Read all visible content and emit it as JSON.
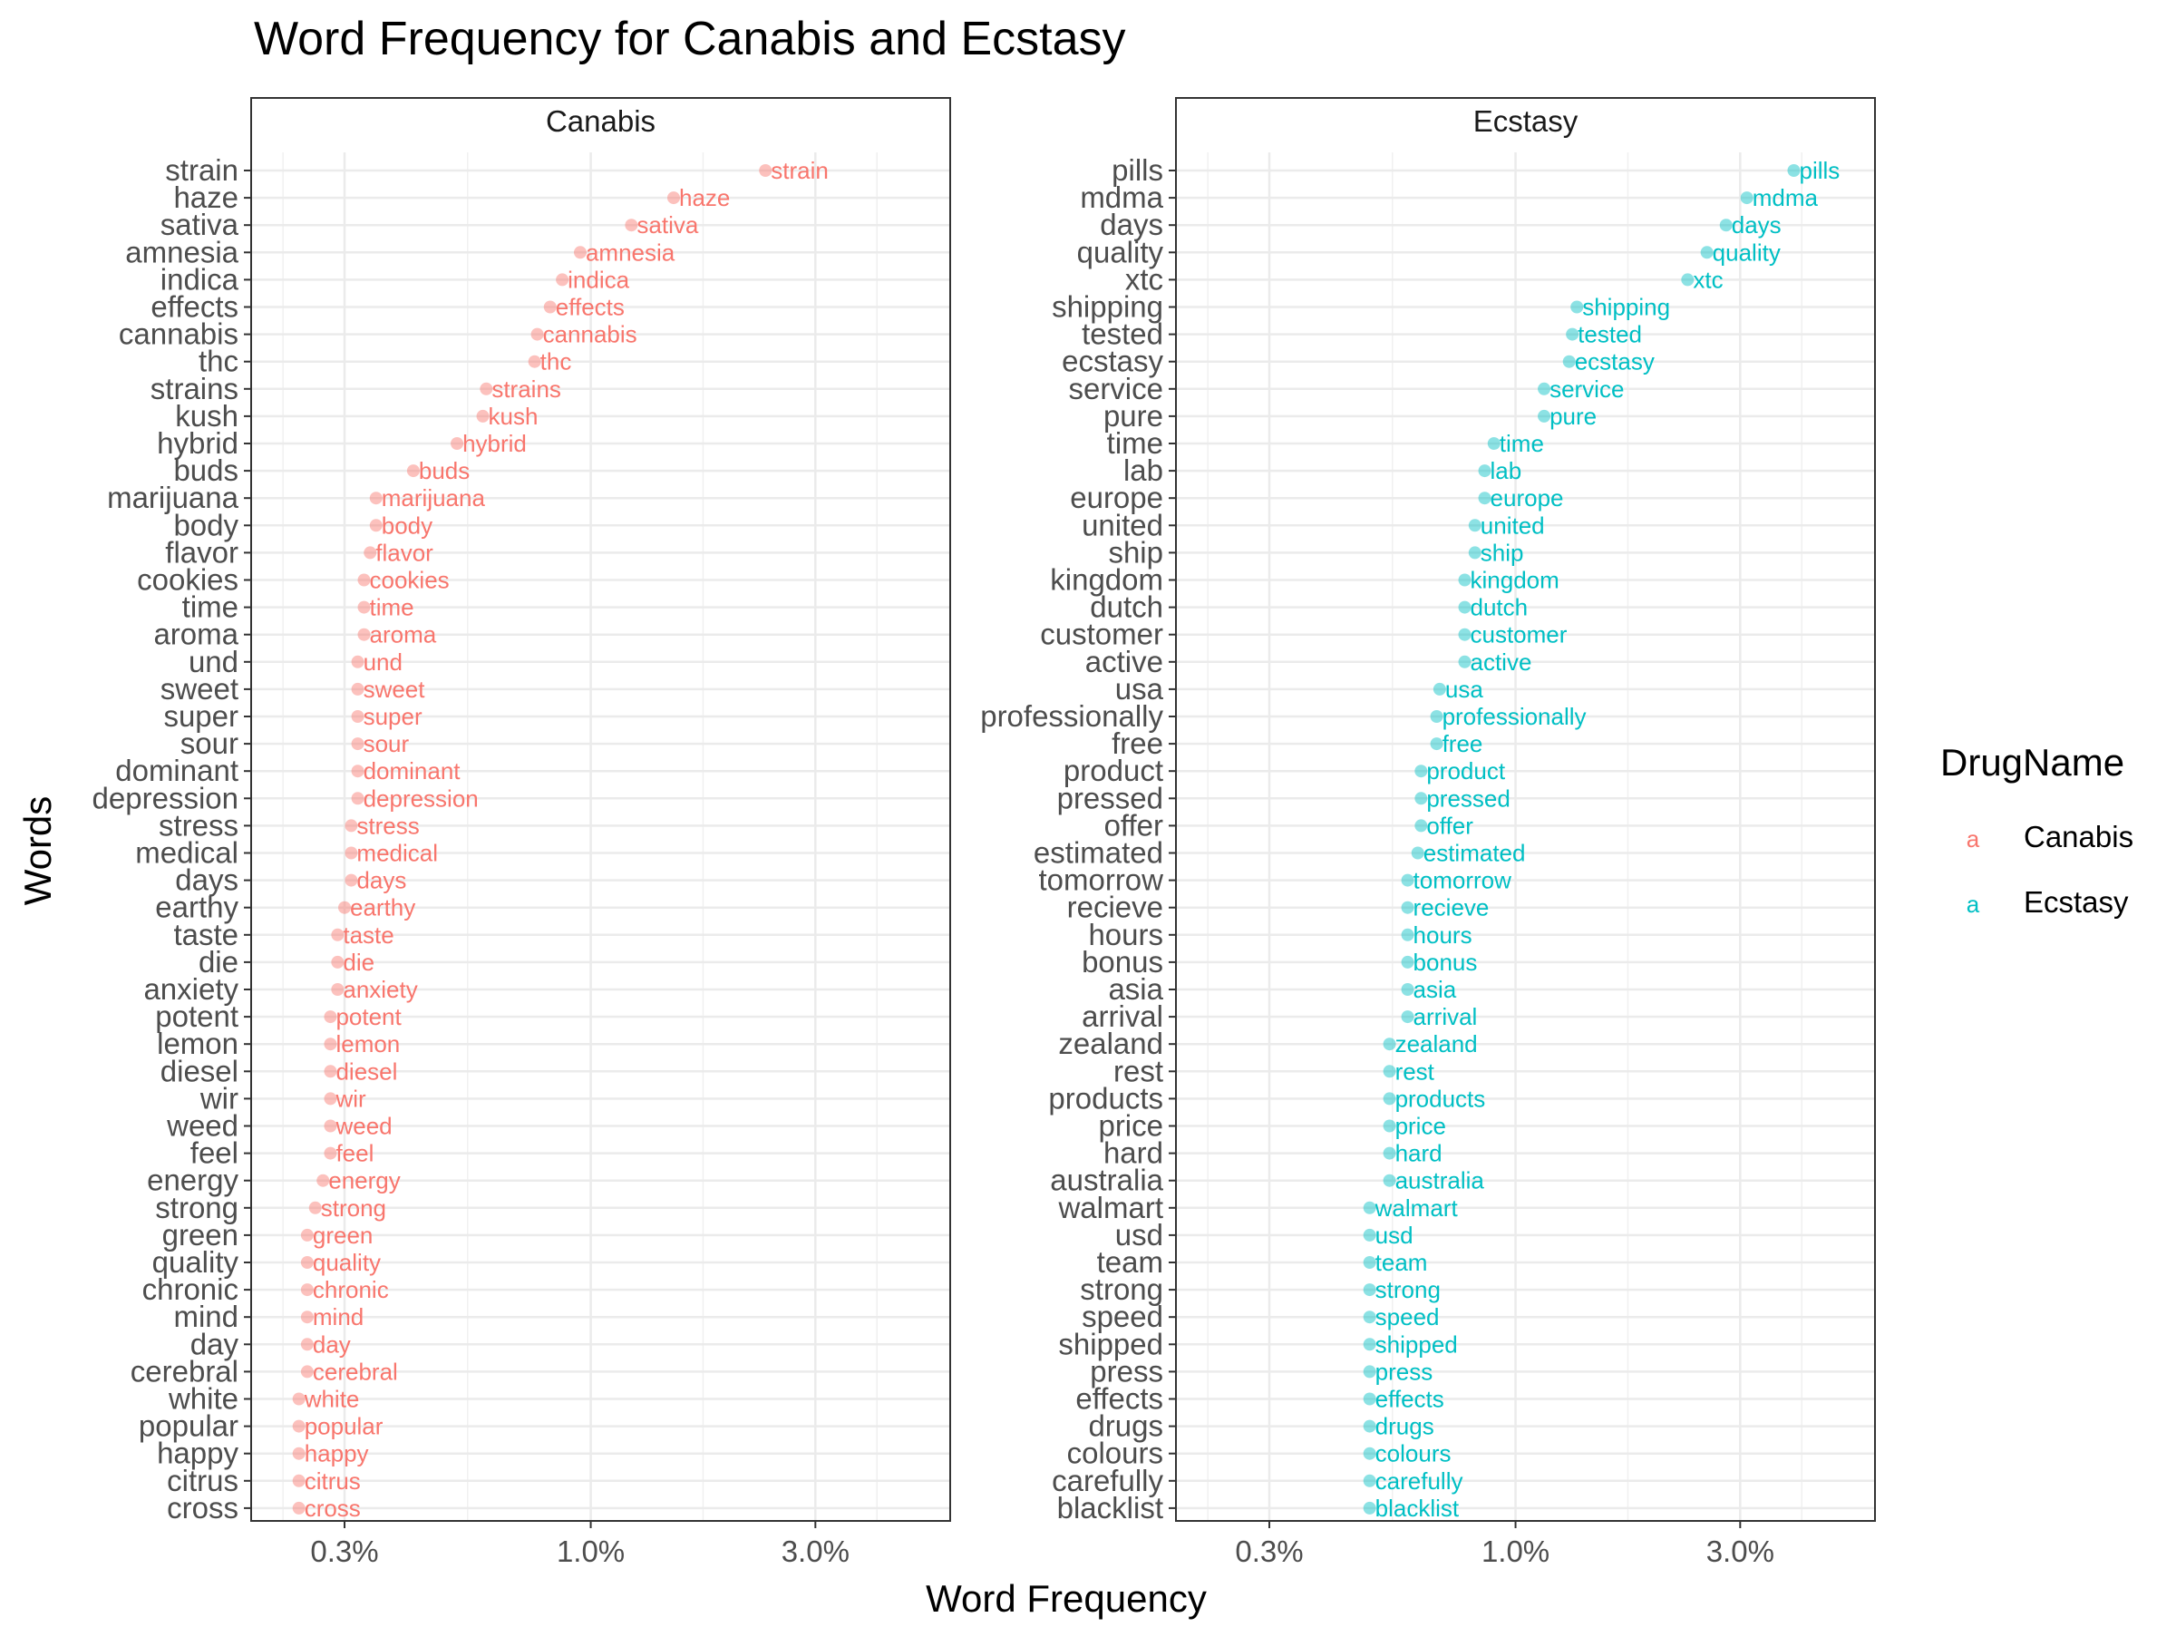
{
  "chart_data": {
    "type": "scatter",
    "title": "Word Frequency for Canabis and Ecstasy",
    "xlabel": "Word Frequency",
    "ylabel": "Words",
    "x_scale": "log10",
    "x_ticks": [
      0.003,
      0.01,
      0.03
    ],
    "x_tick_labels": [
      "0.3%",
      "1.0%",
      "3.0%"
    ],
    "xlim": [
      0.0019,
      0.058
    ],
    "grid": true,
    "legend": {
      "title": "DrugName",
      "placement": "right",
      "key_glyph": "a",
      "entries": [
        {
          "name": "Canabis",
          "color": "#F8766D"
        },
        {
          "name": "Ecstasy",
          "color": "#00BFC4"
        }
      ]
    },
    "panels": [
      {
        "name": "Canabis",
        "color": "#F8766D",
        "words": [
          "strain",
          "haze",
          "sativa",
          "amnesia",
          "indica",
          "effects",
          "cannabis",
          "thc",
          "strains",
          "kush",
          "hybrid",
          "buds",
          "marijuana",
          "body",
          "flavor",
          "cookies",
          "time",
          "aroma",
          "und",
          "sweet",
          "super",
          "sour",
          "dominant",
          "depression",
          "stress",
          "medical",
          "days",
          "earthy",
          "taste",
          "die",
          "anxiety",
          "potent",
          "lemon",
          "diesel",
          "wir",
          "weed",
          "feel",
          "energy",
          "strong",
          "green",
          "quality",
          "chronic",
          "mind",
          "day",
          "cerebral",
          "white",
          "popular",
          "happy",
          "citrus",
          "cross"
        ],
        "values": [
          0.0235,
          0.015,
          0.0122,
          0.0095,
          0.0087,
          0.0082,
          0.0077,
          0.0076,
          0.006,
          0.0059,
          0.0052,
          0.0042,
          0.0035,
          0.0035,
          0.0034,
          0.0033,
          0.0033,
          0.0033,
          0.0032,
          0.0032,
          0.0032,
          0.0032,
          0.0032,
          0.0032,
          0.0031,
          0.0031,
          0.0031,
          0.003,
          0.0029,
          0.0029,
          0.0029,
          0.0028,
          0.0028,
          0.0028,
          0.0028,
          0.0028,
          0.0028,
          0.0027,
          0.0026,
          0.0025,
          0.0025,
          0.0025,
          0.0025,
          0.0025,
          0.0025,
          0.0024,
          0.0024,
          0.0024,
          0.0024,
          0.0024
        ]
      },
      {
        "name": "Ecstasy",
        "color": "#00BFC4",
        "words": [
          "pills",
          "mdma",
          "days",
          "quality",
          "xtc",
          "shipping",
          "tested",
          "ecstasy",
          "service",
          "pure",
          "time",
          "lab",
          "europe",
          "united",
          "ship",
          "kingdom",
          "dutch",
          "customer",
          "active",
          "usa",
          "professionally",
          "free",
          "product",
          "pressed",
          "offer",
          "estimated",
          "tomorrow",
          "recieve",
          "hours",
          "bonus",
          "asia",
          "arrival",
          "zealand",
          "rest",
          "products",
          "price",
          "hard",
          "australia",
          "walmart",
          "usd",
          "team",
          "strong",
          "speed",
          "shipped",
          "press",
          "effects",
          "drugs",
          "colours",
          "carefully",
          "blacklist"
        ],
        "values": [
          0.039,
          0.031,
          0.028,
          0.0255,
          0.0232,
          0.0135,
          0.0132,
          0.013,
          0.0115,
          0.0115,
          0.009,
          0.0086,
          0.0086,
          0.0082,
          0.0082,
          0.0078,
          0.0078,
          0.0078,
          0.0078,
          0.0069,
          0.0068,
          0.0068,
          0.0063,
          0.0063,
          0.0063,
          0.0062,
          0.0059,
          0.0059,
          0.0059,
          0.0059,
          0.0059,
          0.0059,
          0.0054,
          0.0054,
          0.0054,
          0.0054,
          0.0054,
          0.0054,
          0.0049,
          0.0049,
          0.0049,
          0.0049,
          0.0049,
          0.0049,
          0.0049,
          0.0049,
          0.0049,
          0.0049,
          0.0049,
          0.0049
        ]
      }
    ]
  }
}
